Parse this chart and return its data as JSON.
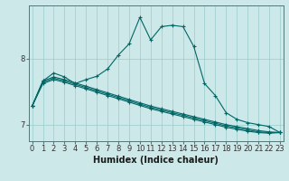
{
  "xlabel": "Humidex (Indice chaleur)",
  "bg_color": "#cce8e8",
  "grid_color": "#99cccc",
  "line_color": "#006666",
  "x_values": [
    0,
    1,
    2,
    3,
    4,
    5,
    6,
    7,
    8,
    9,
    10,
    11,
    12,
    13,
    14,
    15,
    16,
    17,
    18,
    19,
    20,
    21,
    22,
    23
  ],
  "series1": [
    7.28,
    7.66,
    7.78,
    7.72,
    7.62,
    7.68,
    7.73,
    7.84,
    8.05,
    8.22,
    8.62,
    8.28,
    8.48,
    8.5,
    8.48,
    8.18,
    7.62,
    7.44,
    7.18,
    7.08,
    7.03,
    7.0,
    6.97,
    6.88
  ],
  "series2": [
    7.28,
    7.66,
    7.72,
    7.68,
    7.63,
    7.58,
    7.53,
    7.48,
    7.43,
    7.38,
    7.33,
    7.28,
    7.24,
    7.2,
    7.16,
    7.12,
    7.08,
    7.04,
    7.0,
    6.97,
    6.94,
    6.91,
    6.89,
    6.88
  ],
  "series3": [
    7.28,
    7.64,
    7.7,
    7.66,
    7.61,
    7.56,
    7.51,
    7.46,
    7.41,
    7.36,
    7.31,
    7.26,
    7.22,
    7.18,
    7.14,
    7.1,
    7.06,
    7.02,
    6.98,
    6.95,
    6.92,
    6.89,
    6.88,
    6.88
  ],
  "series4": [
    7.28,
    7.62,
    7.68,
    7.64,
    7.59,
    7.54,
    7.49,
    7.44,
    7.39,
    7.34,
    7.29,
    7.24,
    7.2,
    7.16,
    7.12,
    7.08,
    7.04,
    7.0,
    6.96,
    6.93,
    6.9,
    6.88,
    6.87,
    6.88
  ],
  "ylim": [
    6.75,
    8.8
  ],
  "yticks": [
    7.0,
    8.0
  ],
  "xlim": [
    -0.3,
    23.3
  ]
}
